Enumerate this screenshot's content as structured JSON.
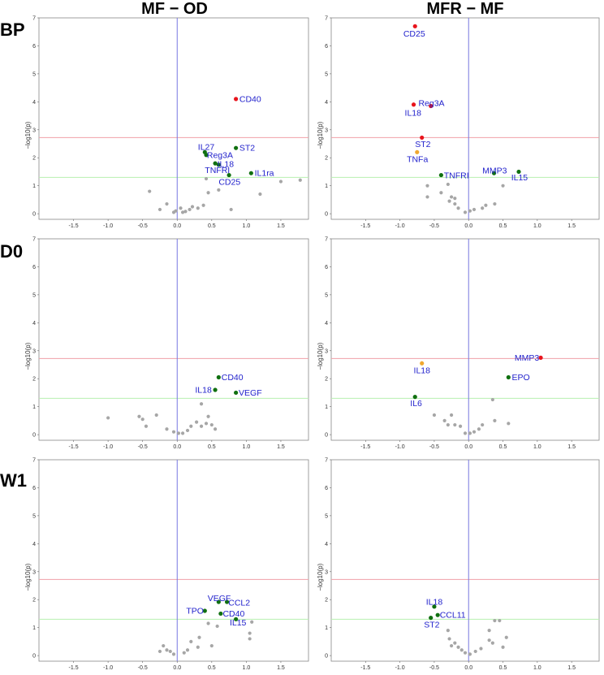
{
  "columns": [
    "MF − OD",
    "MFR − MF"
  ],
  "rows": [
    "BP",
    "D0",
    "W1"
  ],
  "axes": {
    "xlim": [
      -2,
      1.9
    ],
    "ylim": [
      -0.2,
      7
    ],
    "xticks": [
      "-1.5",
      "-1.0",
      "-0.5",
      "0.0",
      "0.5",
      "1.0",
      "1.5"
    ],
    "yticks": [
      "0",
      "1",
      "2",
      "3",
      "4",
      "5",
      "6",
      "7"
    ],
    "ylabel": "−log10(p)",
    "red_threshold": 2.72,
    "green_threshold": 1.3,
    "vline_x": 0
  },
  "colors": {
    "sig": "#e8141c",
    "orange": "#f0a830",
    "green": "#107010",
    "grey": "#a6a6a6",
    "label": "#2222cc",
    "red_line": "#f0a0a8",
    "green_line": "#b8f0b0",
    "vline": "#7878e0"
  },
  "chart_data": [
    {
      "type": "scatter",
      "row": "BP",
      "column": "MF − OD",
      "points": [
        {
          "x": 0.85,
          "y": 4.1,
          "label": "CD40",
          "color": "sig",
          "lx": 0.9,
          "ly": 4.1,
          "anchor": "start"
        },
        {
          "x": 0.4,
          "y": 2.2,
          "label": "IL27",
          "color": "green",
          "lx": 0.3,
          "ly": 2.38,
          "anchor": "start"
        },
        {
          "x": 0.42,
          "y": 2.1,
          "label": "Reg3A",
          "color": "green",
          "lx": 0.43,
          "ly": 2.09,
          "anchor": "start"
        },
        {
          "x": 0.85,
          "y": 2.35,
          "label": "ST2",
          "color": "green",
          "lx": 0.9,
          "ly": 2.35,
          "anchor": "start"
        },
        {
          "x": 0.55,
          "y": 1.8,
          "label": "IL18",
          "color": "green",
          "lx": 0.58,
          "ly": 1.78,
          "anchor": "start"
        },
        {
          "x": 0.6,
          "y": 1.75,
          "label": "TNFRI",
          "color": "green",
          "lx": 0.4,
          "ly": 1.56,
          "anchor": "start"
        },
        {
          "x": 1.07,
          "y": 1.45,
          "label": "IL1ra",
          "color": "green",
          "lx": 1.12,
          "ly": 1.45,
          "anchor": "start"
        },
        {
          "x": 0.75,
          "y": 1.38,
          "label": "CD25",
          "color": "green",
          "lx": 0.6,
          "ly": 1.13,
          "anchor": "start"
        },
        {
          "x": -0.4,
          "y": 0.8,
          "color": "grey"
        },
        {
          "x": -0.25,
          "y": 0.15,
          "color": "grey"
        },
        {
          "x": -0.15,
          "y": 0.35,
          "color": "grey"
        },
        {
          "x": -0.05,
          "y": 0.05,
          "color": "grey"
        },
        {
          "x": -0.02,
          "y": 0.1,
          "color": "grey"
        },
        {
          "x": 0.05,
          "y": 0.2,
          "color": "grey"
        },
        {
          "x": 0.08,
          "y": 0.05,
          "color": "grey"
        },
        {
          "x": 0.12,
          "y": 0.08,
          "color": "grey"
        },
        {
          "x": 0.18,
          "y": 0.15,
          "color": "grey"
        },
        {
          "x": 0.22,
          "y": 0.25,
          "color": "grey"
        },
        {
          "x": 0.3,
          "y": 0.2,
          "color": "grey"
        },
        {
          "x": 0.38,
          "y": 0.3,
          "color": "grey"
        },
        {
          "x": 0.45,
          "y": 0.75,
          "color": "grey"
        },
        {
          "x": 0.6,
          "y": 0.85,
          "color": "grey"
        },
        {
          "x": 0.78,
          "y": 0.15,
          "color": "grey"
        },
        {
          "x": 1.2,
          "y": 0.7,
          "color": "grey"
        },
        {
          "x": 1.5,
          "y": 1.15,
          "color": "grey"
        },
        {
          "x": 1.78,
          "y": 1.2,
          "color": "grey"
        },
        {
          "x": 0.42,
          "y": 1.25,
          "color": "grey"
        }
      ]
    },
    {
      "type": "scatter",
      "row": "BP",
      "column": "MFR − MF",
      "points": [
        {
          "x": -0.78,
          "y": 6.7,
          "label": "CD25",
          "color": "sig",
          "lx": -0.95,
          "ly": 6.43,
          "anchor": "start"
        },
        {
          "x": -0.8,
          "y": 3.9,
          "label": "IL18",
          "color": "sig",
          "lx": -0.93,
          "ly": 3.6,
          "anchor": "start"
        },
        {
          "x": -0.55,
          "y": 3.85,
          "label": "Reg3A",
          "color": "sig",
          "lx": -0.73,
          "ly": 3.95,
          "anchor": "start"
        },
        {
          "x": -0.68,
          "y": 2.72,
          "label": "ST2",
          "color": "sig",
          "lx": -0.78,
          "ly": 2.48,
          "anchor": "start"
        },
        {
          "x": -0.75,
          "y": 2.2,
          "label": "TNFa",
          "color": "orange",
          "lx": -0.9,
          "ly": 1.95,
          "anchor": "start"
        },
        {
          "x": -0.4,
          "y": 1.38,
          "label": "TNFRI",
          "color": "green",
          "lx": -0.36,
          "ly": 1.37,
          "anchor": "start"
        },
        {
          "x": 0.37,
          "y": 1.45,
          "label": "MMP3",
          "color": "green",
          "lx": 0.2,
          "ly": 1.54,
          "anchor": "start"
        },
        {
          "x": 0.73,
          "y": 1.5,
          "label": "IL15",
          "color": "green",
          "lx": 0.62,
          "ly": 1.3,
          "anchor": "start"
        },
        {
          "x": -0.6,
          "y": 1.0,
          "color": "grey"
        },
        {
          "x": -0.6,
          "y": 0.6,
          "color": "grey"
        },
        {
          "x": -0.4,
          "y": 0.75,
          "color": "grey"
        },
        {
          "x": -0.3,
          "y": 1.05,
          "color": "grey"
        },
        {
          "x": -0.25,
          "y": 0.6,
          "color": "grey"
        },
        {
          "x": -0.28,
          "y": 0.45,
          "color": "grey"
        },
        {
          "x": -0.2,
          "y": 0.35,
          "color": "grey"
        },
        {
          "x": -0.15,
          "y": 0.2,
          "color": "grey"
        },
        {
          "x": -0.05,
          "y": 0.05,
          "color": "grey"
        },
        {
          "x": 0.02,
          "y": 0.1,
          "color": "grey"
        },
        {
          "x": 0.08,
          "y": 0.15,
          "color": "grey"
        },
        {
          "x": 0.2,
          "y": 0.2,
          "color": "grey"
        },
        {
          "x": 0.25,
          "y": 0.3,
          "color": "grey"
        },
        {
          "x": 0.38,
          "y": 0.35,
          "color": "grey"
        },
        {
          "x": 0.5,
          "y": 1.0,
          "color": "grey"
        },
        {
          "x": -0.2,
          "y": 0.55,
          "color": "grey"
        }
      ]
    },
    {
      "type": "scatter",
      "row": "D0",
      "column": "MF − OD",
      "points": [
        {
          "x": 0.6,
          "y": 2.05,
          "label": "CD40",
          "color": "green",
          "lx": 0.64,
          "ly": 2.05,
          "anchor": "start"
        },
        {
          "x": 0.55,
          "y": 1.6,
          "label": "IL18",
          "color": "green",
          "lx": 0.26,
          "ly": 1.6,
          "anchor": "start"
        },
        {
          "x": 0.85,
          "y": 1.5,
          "label": "VEGF",
          "color": "green",
          "lx": 0.89,
          "ly": 1.5,
          "anchor": "start"
        },
        {
          "x": -1.0,
          "y": 0.6,
          "color": "grey"
        },
        {
          "x": -0.55,
          "y": 0.65,
          "color": "grey"
        },
        {
          "x": -0.5,
          "y": 0.55,
          "color": "grey"
        },
        {
          "x": -0.45,
          "y": 0.3,
          "color": "grey"
        },
        {
          "x": -0.3,
          "y": 0.7,
          "color": "grey"
        },
        {
          "x": -0.15,
          "y": 0.2,
          "color": "grey"
        },
        {
          "x": -0.05,
          "y": 0.1,
          "color": "grey"
        },
        {
          "x": 0.02,
          "y": 0.05,
          "color": "grey"
        },
        {
          "x": 0.08,
          "y": 0.05,
          "color": "grey"
        },
        {
          "x": 0.15,
          "y": 0.15,
          "color": "grey"
        },
        {
          "x": 0.2,
          "y": 0.3,
          "color": "grey"
        },
        {
          "x": 0.28,
          "y": 0.45,
          "color": "grey"
        },
        {
          "x": 0.35,
          "y": 0.3,
          "color": "grey"
        },
        {
          "x": 0.42,
          "y": 0.4,
          "color": "grey"
        },
        {
          "x": 0.45,
          "y": 0.65,
          "color": "grey"
        },
        {
          "x": 0.5,
          "y": 0.35,
          "color": "grey"
        },
        {
          "x": 0.35,
          "y": 1.1,
          "color": "grey"
        },
        {
          "x": 0.55,
          "y": 0.2,
          "color": "grey"
        }
      ]
    },
    {
      "type": "scatter",
      "row": "D0",
      "column": "MFR − MF",
      "points": [
        {
          "x": 1.05,
          "y": 2.75,
          "label": "MMP3",
          "color": "sig",
          "lx": 0.67,
          "ly": 2.75,
          "anchor": "start"
        },
        {
          "x": -0.68,
          "y": 2.55,
          "label": "IL18",
          "color": "orange",
          "lx": -0.8,
          "ly": 2.3,
          "anchor": "start"
        },
        {
          "x": 0.58,
          "y": 2.05,
          "label": "EPO",
          "color": "green",
          "lx": 0.63,
          "ly": 2.05,
          "anchor": "start"
        },
        {
          "x": -0.78,
          "y": 1.35,
          "label": "IL6",
          "color": "green",
          "lx": -0.85,
          "ly": 1.12,
          "anchor": "start"
        },
        {
          "x": -0.5,
          "y": 0.7,
          "color": "grey"
        },
        {
          "x": -0.35,
          "y": 0.5,
          "color": "grey"
        },
        {
          "x": -0.25,
          "y": 0.7,
          "color": "grey"
        },
        {
          "x": -0.2,
          "y": 0.35,
          "color": "grey"
        },
        {
          "x": -0.12,
          "y": 0.3,
          "color": "grey"
        },
        {
          "x": -0.05,
          "y": 0.05,
          "color": "grey"
        },
        {
          "x": 0.02,
          "y": 0.05,
          "color": "grey"
        },
        {
          "x": 0.08,
          "y": 0.1,
          "color": "grey"
        },
        {
          "x": 0.15,
          "y": 0.2,
          "color": "grey"
        },
        {
          "x": 0.2,
          "y": 0.35,
          "color": "grey"
        },
        {
          "x": 0.35,
          "y": 1.25,
          "color": "grey"
        },
        {
          "x": 0.38,
          "y": 0.5,
          "color": "grey"
        },
        {
          "x": 0.58,
          "y": 0.4,
          "color": "grey"
        },
        {
          "x": -0.3,
          "y": 0.35,
          "color": "grey"
        }
      ]
    },
    {
      "type": "scatter",
      "row": "W1",
      "column": "MF − OD",
      "points": [
        {
          "x": 0.6,
          "y": 1.92,
          "label": "VEGF",
          "color": "green",
          "lx": 0.44,
          "ly": 2.05,
          "anchor": "start"
        },
        {
          "x": 0.72,
          "y": 1.92,
          "label": "CCL2",
          "color": "green",
          "lx": 0.74,
          "ly": 1.89,
          "anchor": "start"
        },
        {
          "x": 0.4,
          "y": 1.6,
          "label": "TPO",
          "color": "green",
          "lx": 0.13,
          "ly": 1.6,
          "anchor": "start"
        },
        {
          "x": 0.63,
          "y": 1.5,
          "label": "CD40",
          "color": "green",
          "lx": 0.66,
          "ly": 1.5,
          "anchor": "start"
        },
        {
          "x": 0.85,
          "y": 1.3,
          "label": "IL15",
          "color": "green",
          "lx": 0.76,
          "ly": 1.18,
          "anchor": "start"
        },
        {
          "x": -0.25,
          "y": 0.15,
          "color": "grey"
        },
        {
          "x": -0.2,
          "y": 0.35,
          "color": "grey"
        },
        {
          "x": -0.15,
          "y": 0.2,
          "color": "grey"
        },
        {
          "x": -0.1,
          "y": 0.15,
          "color": "grey"
        },
        {
          "x": -0.05,
          "y": 0.05,
          "color": "grey"
        },
        {
          "x": 0.1,
          "y": 0.1,
          "color": "grey"
        },
        {
          "x": 0.15,
          "y": 0.2,
          "color": "grey"
        },
        {
          "x": 0.2,
          "y": 0.5,
          "color": "grey"
        },
        {
          "x": 0.3,
          "y": 0.3,
          "color": "grey"
        },
        {
          "x": 0.32,
          "y": 0.65,
          "color": "grey"
        },
        {
          "x": 0.45,
          "y": 1.15,
          "color": "grey"
        },
        {
          "x": 0.5,
          "y": 0.35,
          "color": "grey"
        },
        {
          "x": 0.58,
          "y": 1.05,
          "color": "grey"
        },
        {
          "x": 1.08,
          "y": 1.2,
          "color": "grey"
        },
        {
          "x": 1.05,
          "y": 0.8,
          "color": "grey"
        },
        {
          "x": 1.05,
          "y": 0.6,
          "color": "grey"
        }
      ]
    },
    {
      "type": "scatter",
      "row": "W1",
      "column": "MFR − MF",
      "points": [
        {
          "x": -0.5,
          "y": 1.75,
          "label": "IL18",
          "color": "green",
          "lx": -0.62,
          "ly": 1.92,
          "anchor": "start"
        },
        {
          "x": -0.45,
          "y": 1.45,
          "label": "CCL11",
          "color": "green",
          "lx": -0.42,
          "ly": 1.45,
          "anchor": "start"
        },
        {
          "x": -0.55,
          "y": 1.35,
          "label": "ST2",
          "color": "green",
          "lx": -0.65,
          "ly": 1.1,
          "anchor": "start"
        },
        {
          "x": -0.3,
          "y": 0.9,
          "color": "grey"
        },
        {
          "x": -0.28,
          "y": 0.6,
          "color": "grey"
        },
        {
          "x": -0.25,
          "y": 0.35,
          "color": "grey"
        },
        {
          "x": -0.2,
          "y": 0.45,
          "color": "grey"
        },
        {
          "x": -0.15,
          "y": 0.3,
          "color": "grey"
        },
        {
          "x": -0.1,
          "y": 0.2,
          "color": "grey"
        },
        {
          "x": -0.05,
          "y": 0.1,
          "color": "grey"
        },
        {
          "x": 0.02,
          "y": 0.05,
          "color": "grey"
        },
        {
          "x": 0.1,
          "y": 0.15,
          "color": "grey"
        },
        {
          "x": 0.18,
          "y": 0.25,
          "color": "grey"
        },
        {
          "x": 0.3,
          "y": 0.9,
          "color": "grey"
        },
        {
          "x": 0.35,
          "y": 0.45,
          "color": "grey"
        },
        {
          "x": 0.38,
          "y": 1.25,
          "color": "grey"
        },
        {
          "x": 0.45,
          "y": 1.25,
          "color": "grey"
        },
        {
          "x": 0.5,
          "y": 0.3,
          "color": "grey"
        },
        {
          "x": 0.55,
          "y": 0.65,
          "color": "grey"
        },
        {
          "x": 0.3,
          "y": 0.55,
          "color": "grey"
        }
      ]
    }
  ]
}
